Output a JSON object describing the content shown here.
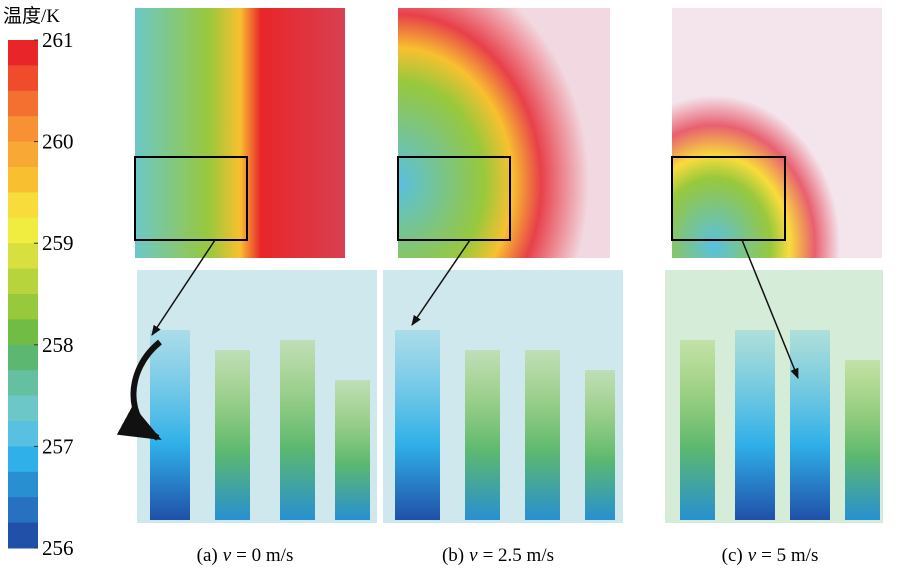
{
  "colorbar": {
    "title": "温度/K",
    "range": [
      256,
      261
    ],
    "ticks": [
      261,
      260,
      259,
      258,
      257,
      256
    ],
    "colors": [
      "#e8262a",
      "#f04c2c",
      "#f47030",
      "#f89034",
      "#f8a834",
      "#f8c030",
      "#f8dc3c",
      "#f0ec40",
      "#d8e040",
      "#b8d43c",
      "#98c83c",
      "#70bc44",
      "#5cb870",
      "#64c0a0",
      "#6cc8c8",
      "#58c0e0",
      "#30b0e8",
      "#2890d0",
      "#2870c0",
      "#2050a8"
    ]
  },
  "captions": [
    {
      "label": "(a)",
      "variable": "v",
      "value_text": "= 0 m/s"
    },
    {
      "label": "(b)",
      "variable": "v",
      "value_text": "= 2.5 m/s"
    },
    {
      "label": "(c)",
      "variable": "v",
      "value_text": "= 5 m/s"
    }
  ]
}
